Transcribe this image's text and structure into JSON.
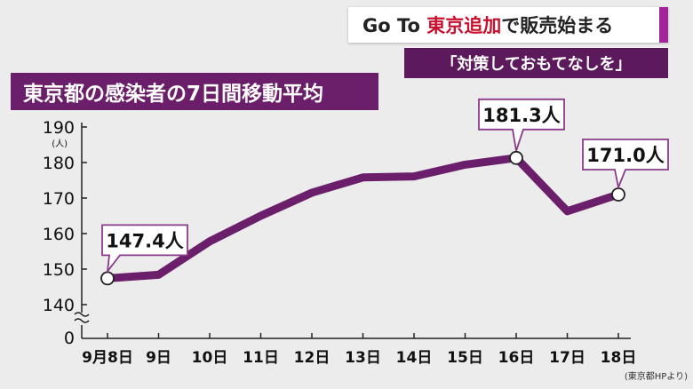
{
  "headline": {
    "part1": "Go To ",
    "part2": "東京追加",
    "part3": "で販売始まる"
  },
  "subheadline": "「対策しておもてなしを」",
  "source": "(東京都HPより)",
  "colors": {
    "line": "#6b1f6b",
    "accent_red": "#c8102e",
    "stripe": "#a3249a",
    "callout_border": "#8a3a8a"
  },
  "chart_data": {
    "type": "line",
    "title": "東京都の感染者の7日間移動平均",
    "ylabel": "(人)",
    "ylim": [
      140,
      190
    ],
    "yticks": [
      190,
      180,
      170,
      160,
      150,
      140
    ],
    "y_zero_label": "0",
    "axis_break": true,
    "categories": [
      "9月8日",
      "9日",
      "10日",
      "11日",
      "12日",
      "13日",
      "14日",
      "15日",
      "16日",
      "17日",
      "18日"
    ],
    "series": [
      {
        "values": [
          147.4,
          148.4,
          157.8,
          165.0,
          171.5,
          175.8,
          176.1,
          179.4,
          181.3,
          166.3,
          171.0
        ]
      }
    ],
    "callouts": [
      {
        "index": 0,
        "text": "147.4人"
      },
      {
        "index": 8,
        "text": "181.3人"
      },
      {
        "index": 10,
        "text": "171.0人"
      }
    ]
  }
}
